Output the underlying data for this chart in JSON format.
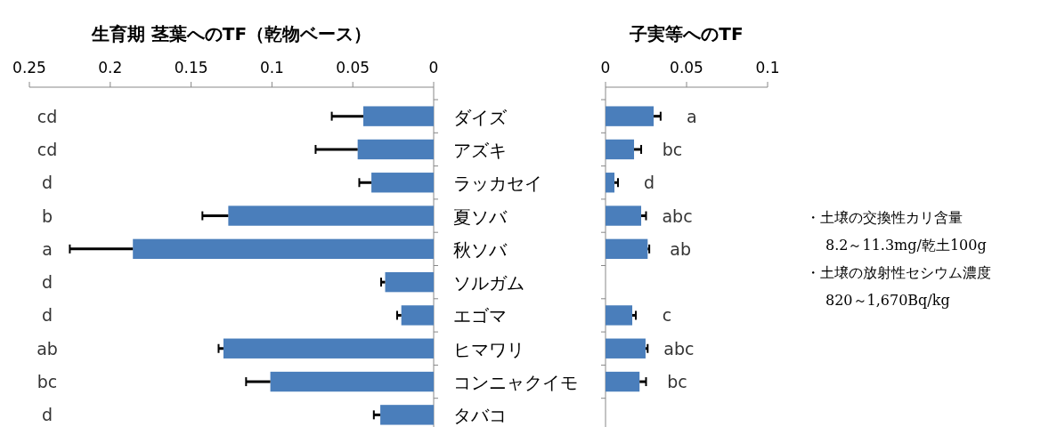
{
  "chart_data": [
    {
      "type": "bar",
      "orientation": "horizontal",
      "title": "生育期 茎葉へのTF（乾物ベース）",
      "categories": [
        "ダイズ",
        "アズキ",
        "ラッカセイ",
        "夏ソバ",
        "秋ソバ",
        "ソルガム",
        "エゴマ",
        "ヒマワリ",
        "コンニャクイモ",
        "タバコ"
      ],
      "values": [
        0.0435,
        0.047,
        0.0385,
        0.127,
        0.186,
        0.03,
        0.02,
        0.13,
        0.101,
        0.033
      ],
      "errors": [
        [
          0.0435,
          0.063
        ],
        [
          0.047,
          0.073
        ],
        [
          0.0385,
          0.046
        ],
        [
          0.127,
          0.143
        ],
        [
          0.186,
          0.225
        ],
        [
          0.03,
          0.0325
        ],
        [
          0.02,
          0.0226
        ],
        [
          0.13,
          0.133
        ],
        [
          0.101,
          0.116
        ],
        [
          0.033,
          0.037
        ]
      ],
      "value_labels": [
        "cd",
        "cd",
        "d",
        "b",
        "a",
        "d",
        "d",
        "ab",
        "bc",
        "d"
      ],
      "color": "#4a7ebb",
      "xlim": [
        0.25,
        0
      ],
      "xticks": [
        0.25,
        0.2,
        0.15,
        0.1,
        0.05,
        0
      ]
    },
    {
      "type": "bar",
      "orientation": "horizontal",
      "title": "子実等へのTF",
      "categories": [
        null,
        null,
        null,
        null,
        null,
        null,
        null,
        null,
        null,
        null
      ],
      "values": [
        0.0297,
        0.0176,
        0.0055,
        0.022,
        0.026,
        null,
        0.0165,
        0.0247,
        0.021,
        null
      ],
      "errors": [
        [
          0.0297,
          0.034
        ],
        [
          0.0176,
          0.022
        ],
        [
          0.0055,
          0.0077
        ],
        [
          0.022,
          0.025
        ],
        [
          0.026,
          0.027
        ],
        null,
        [
          0.0165,
          0.0187
        ],
        [
          0.0247,
          0.026
        ],
        [
          0.021,
          0.025
        ],
        null
      ],
      "value_labels": [
        "a",
        "bc",
        "d",
        "abc",
        "ab",
        null,
        "c",
        "abc",
        "bc",
        null
      ],
      "color": "#4a7ebb",
      "xlim": [
        0,
        0.1
      ],
      "xticks": [
        0,
        0.05,
        0.1
      ],
      "tick_labels": "x",
      "annotations": [
        "・土壌の交換性カリ含量",
        "8.2～11.3mg/乾土100g",
        "・土壌の放射性セシウム濃度",
        "820～1,670Bq/kg"
      ]
    }
  ]
}
